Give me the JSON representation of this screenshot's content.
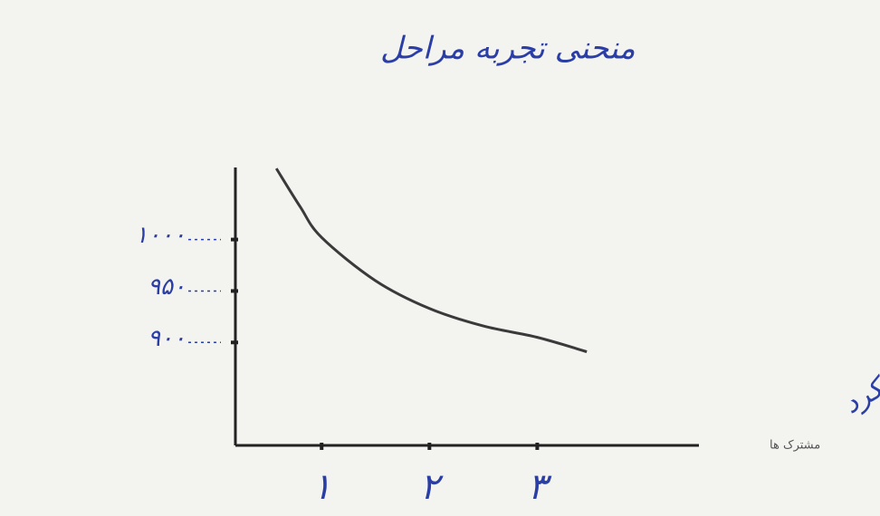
{
  "chart_data": {
    "type": "line",
    "title": "منحنی تجربه مراحل",
    "x_label": "عملکرد",
    "x_note": "مشترک ها",
    "x": [
      0.58,
      0.8,
      1,
      1.5,
      2,
      2.5,
      3,
      3.46
    ],
    "series": [
      {
        "color": "#3a3a3a",
        "values": [
          1069,
          1032,
          1002,
          960,
          933,
          916,
          905,
          891
        ]
      }
    ],
    "xlim": [
      0.2,
      4.5
    ],
    "xticks": [
      {
        "value": 1,
        "label": "۱"
      },
      {
        "value": 2,
        "label": "۲"
      },
      {
        "value": 3,
        "label": "۳"
      }
    ],
    "ylim": [
      800,
      1070
    ],
    "yticks": [
      {
        "value": 900,
        "label": "۹۰۰"
      },
      {
        "value": 950,
        "label": "۹۵۰"
      },
      {
        "value": 1000,
        "label": "۱۰۰۰"
      }
    ],
    "grid": false
  }
}
